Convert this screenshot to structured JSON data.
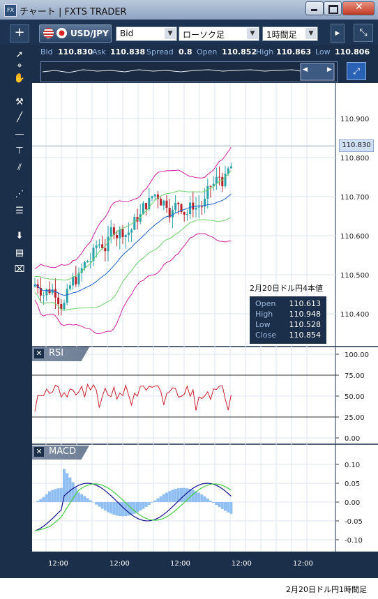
{
  "window": {
    "title": "チャート | FXTS TRADER"
  },
  "toolbar": {
    "add_label": "+",
    "symbol": "USD/JPY",
    "price_type": "Bid",
    "chart_type": "ローソク足",
    "timeframe": "1時間足"
  },
  "quote": {
    "bid_label": "Bid",
    "bid": "110.830",
    "ask_label": "Ask",
    "ask": "110.838",
    "spread_label": "Spread",
    "spread": "0.8",
    "open_label": "Open",
    "open": "110.852",
    "high_label": "High",
    "high": "110.863",
    "low_label": "Low",
    "low": "110.806"
  },
  "price_axis": {
    "ticks": [
      "110.900",
      "110.800",
      "110.700",
      "110.600",
      "110.500",
      "110.400"
    ],
    "current": "110.830"
  },
  "rsi": {
    "label": "RSI",
    "ticks": [
      "100.00",
      "75.00",
      "50.00",
      "25.00",
      "0.00"
    ]
  },
  "macd": {
    "label": "MACD",
    "ticks": [
      "0.10",
      "0.05",
      "0.00",
      "-0.05",
      "-0.10"
    ]
  },
  "time_axis": {
    "ticks": [
      "12:00",
      "12:00",
      "12:00",
      "12:00",
      "12:00"
    ]
  },
  "annotation": {
    "title": "2月20日ドル円4本値",
    "rows": [
      {
        "label": "Open",
        "value": "110.613"
      },
      {
        "label": "High",
        "value": "110.948"
      },
      {
        "label": "Low",
        "value": "110.528"
      },
      {
        "label": "Close",
        "value": "110.854"
      }
    ]
  },
  "caption": "2月20日ドル円1時間足",
  "colors": {
    "frame": "#1b2f4b",
    "bull": "#2aa0a8",
    "bear": "#b8202a",
    "bollinger_outer": "#d020a0",
    "bollinger_inner": "#6bd16b",
    "ma": "#1a5fc8",
    "rsi": "#c8202a",
    "macd": "#10108a",
    "signal": "#44cc44",
    "histogram": "#8fbff2"
  }
}
